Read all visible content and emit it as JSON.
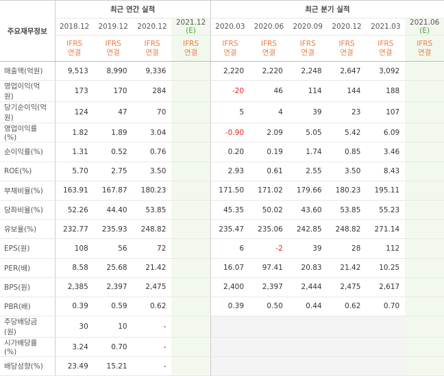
{
  "table": {
    "corner": "주요재무정보",
    "groups": [
      {
        "label": "최근 연간 실적",
        "span": 4
      },
      {
        "label": "최근 분기 실적",
        "span": 6
      }
    ],
    "columns": [
      {
        "period": "2018.12",
        "standard": "IFRS",
        "scope": "연결"
      },
      {
        "period": "2019.12",
        "standard": "IFRS",
        "scope": "연결"
      },
      {
        "period": "2020.12",
        "standard": "IFRS",
        "scope": "연결"
      },
      {
        "period": "2021.12",
        "mark": "(E)",
        "standard": "IFRS",
        "scope": "연결"
      },
      {
        "period": "2020.03",
        "standard": "IFRS",
        "scope": "연결"
      },
      {
        "period": "2020.06",
        "standard": "IFRS",
        "scope": "연결"
      },
      {
        "period": "2020.09",
        "standard": "IFRS",
        "scope": "연결"
      },
      {
        "period": "2020.12",
        "standard": "IFRS",
        "scope": "연결"
      },
      {
        "period": "2021.03",
        "standard": "IFRS",
        "scope": "연결"
      },
      {
        "period": "2021.06",
        "mark": "(E)",
        "standard": "IFRS",
        "scope": "연결"
      }
    ],
    "sections": [
      {
        "rows": [
          {
            "label": "매출액(억원)",
            "cells": [
              "9,513",
              "8,990",
              "9,336",
              null,
              "2,220",
              "2,220",
              "2,248",
              "2,647",
              "3,092",
              null
            ]
          },
          {
            "label": "영업이익(억원)",
            "cells": [
              "173",
              "170",
              "284",
              null,
              "-20",
              "46",
              "114",
              "144",
              "188",
              null
            ]
          },
          {
            "label": "당기순이익(억원)",
            "cells": [
              "124",
              "47",
              "70",
              null,
              "5",
              "4",
              "39",
              "23",
              "107",
              null
            ]
          }
        ]
      },
      {
        "rows": [
          {
            "label": "영업이익률(%)",
            "cells": [
              "1.82",
              "1.89",
              "3.04",
              null,
              "-0.90",
              "2.09",
              "5.05",
              "5.42",
              "6.09",
              null
            ]
          },
          {
            "label": "순이익률(%)",
            "cells": [
              "1.31",
              "0.52",
              "0.76",
              null,
              "0.20",
              "0.19",
              "1.74",
              "0.85",
              "3.46",
              null
            ]
          },
          {
            "label": "ROE(%)",
            "cells": [
              "5.70",
              "2.75",
              "3.50",
              null,
              "2.93",
              "0.61",
              "2.55",
              "3.50",
              "8.43",
              null
            ]
          }
        ]
      },
      {
        "rows": [
          {
            "label": "부채비율(%)",
            "cells": [
              "163.91",
              "167.87",
              "180.23",
              null,
              "171.50",
              "171.02",
              "179.66",
              "180.23",
              "195.11",
              null
            ]
          },
          {
            "label": "당좌비율(%)",
            "cells": [
              "52.26",
              "44.40",
              "53.85",
              null,
              "45.35",
              "50.02",
              "43.60",
              "53.85",
              "55.23",
              null
            ]
          },
          {
            "label": "유보율(%)",
            "cells": [
              "232.77",
              "235.93",
              "248.82",
              null,
              "235.47",
              "235.06",
              "242.85",
              "248.82",
              "271.14",
              null
            ]
          }
        ]
      },
      {
        "rows": [
          {
            "label": "EPS(원)",
            "cells": [
              "108",
              "56",
              "72",
              null,
              "6",
              "-2",
              "39",
              "28",
              "112",
              null
            ]
          },
          {
            "label": "PER(배)",
            "cells": [
              "8.58",
              "25.68",
              "21.42",
              null,
              "16.07",
              "97.41",
              "20.83",
              "21.42",
              "10.25",
              null
            ]
          },
          {
            "label": "BPS(원)",
            "cells": [
              "2,385",
              "2,397",
              "2,475",
              null,
              "2,400",
              "2,397",
              "2,444",
              "2,475",
              "2,617",
              null
            ]
          },
          {
            "label": "PBR(배)",
            "cells": [
              "0.39",
              "0.59",
              "0.62",
              null,
              "0.39",
              "0.50",
              "0.44",
              "0.62",
              "0.70",
              null
            ]
          }
        ]
      },
      {
        "rows": [
          {
            "label": "주당배당금(원)",
            "cells": [
              "30",
              "10",
              "-",
              null,
              null,
              null,
              null,
              null,
              null,
              null
            ]
          },
          {
            "label": "시가배당률(%)",
            "cells": [
              "3.24",
              "0.70",
              "-",
              null,
              null,
              null,
              null,
              null,
              null,
              null
            ]
          },
          {
            "label": "배당성향(%)",
            "cells": [
              "23.49",
              "15.21",
              "-",
              null,
              null,
              null,
              null,
              null,
              null,
              null
            ]
          }
        ]
      }
    ]
  }
}
